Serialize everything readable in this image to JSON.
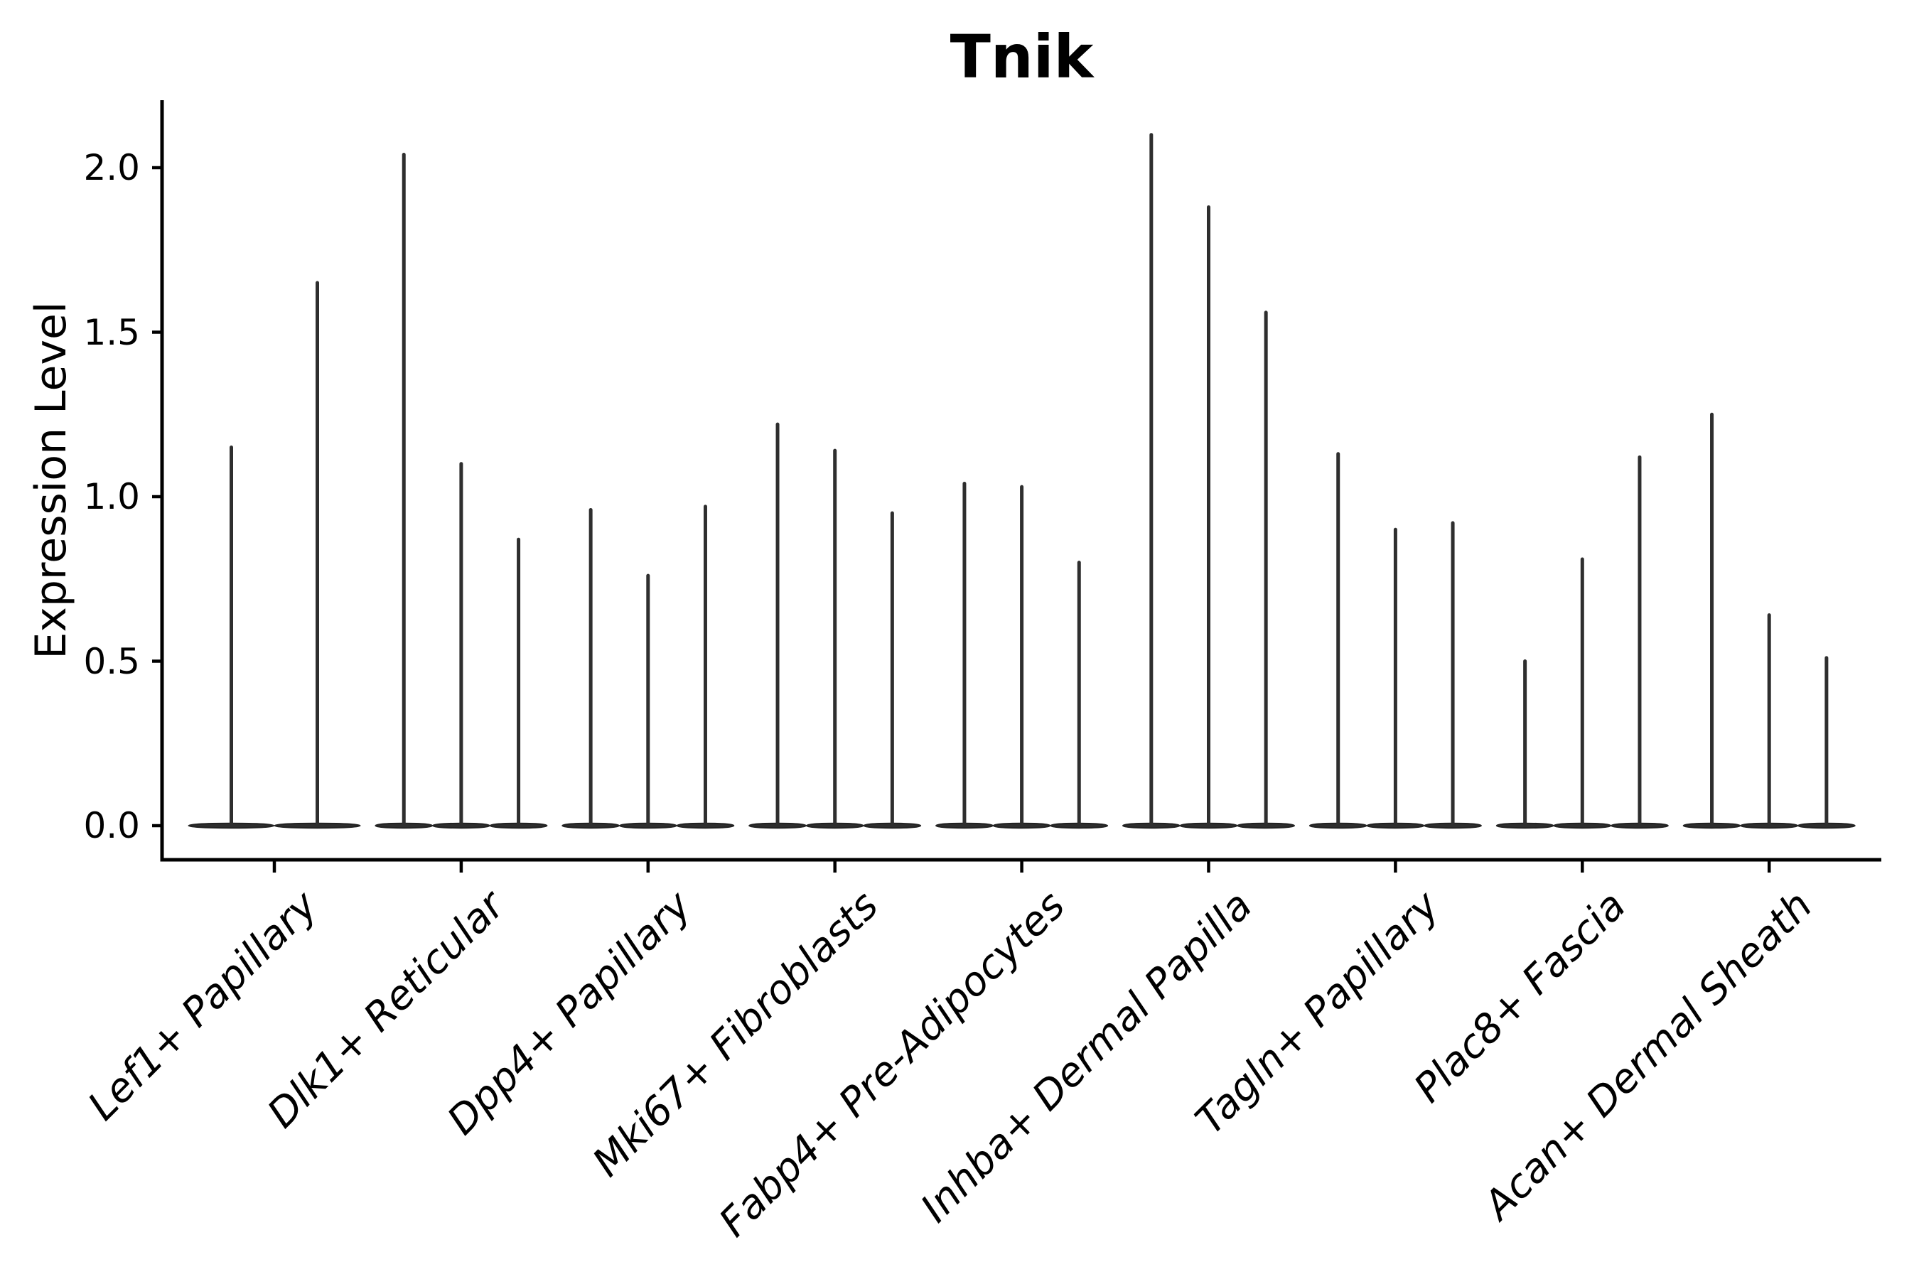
{
  "background": "#ffffff",
  "chart_data": {
    "type": "violin",
    "title": "Tnik",
    "ylabel": "Expression Level",
    "xlabel": "",
    "grid": false,
    "legend": false,
    "ink_color": "#000000",
    "violin_color": "#2e2e2e",
    "ylim": [
      -0.1,
      2.21
    ],
    "yticks": [
      {
        "value": 0.0,
        "label": "0.0"
      },
      {
        "value": 0.5,
        "label": "0.5"
      },
      {
        "value": 1.0,
        "label": "1.0"
      },
      {
        "value": 1.5,
        "label": "1.5"
      },
      {
        "value": 2.0,
        "label": "2.0"
      }
    ],
    "categories": [
      "Lef1+ Papillary",
      "Dlk1+ Reticular",
      "Dpp4+ Papillary",
      "Mki67+ Fibroblasts",
      "Fabp4+ Pre-Adipocytes",
      "Inhba+ Dermal Papilla",
      "Tagln+ Papillary",
      "Plac8+ Fascia",
      "Acan+ Dermal Sheath"
    ],
    "groups": [
      {
        "label": "Lef1+ Papillary",
        "violin_max_values": [
          1.15,
          1.65
        ]
      },
      {
        "label": "Dlk1+ Reticular",
        "violin_max_values": [
          2.04,
          1.1,
          0.87
        ]
      },
      {
        "label": "Dpp4+ Papillary",
        "violin_max_values": [
          0.96,
          0.76,
          0.97
        ]
      },
      {
        "label": "Mki67+ Fibroblasts",
        "violin_max_values": [
          1.22,
          1.14,
          0.95
        ]
      },
      {
        "label": "Fabp4+ Pre-Adipocytes",
        "violin_max_values": [
          1.04,
          1.03,
          0.8
        ]
      },
      {
        "label": "Inhba+ Dermal Papilla",
        "violin_max_values": [
          2.1,
          1.88,
          1.56
        ]
      },
      {
        "label": "Tagln+ Papillary",
        "violin_max_values": [
          1.13,
          0.9,
          0.92
        ]
      },
      {
        "label": "Plac8+ Fascia",
        "violin_max_values": [
          0.5,
          0.81,
          1.12
        ]
      },
      {
        "label": "Acan+ Dermal Sheath",
        "violin_max_values": [
          1.25,
          0.64,
          0.51
        ]
      }
    ]
  }
}
